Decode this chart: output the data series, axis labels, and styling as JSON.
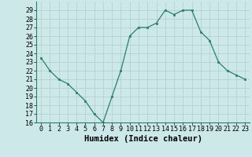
{
  "x": [
    0,
    1,
    2,
    3,
    4,
    5,
    6,
    7,
    8,
    9,
    10,
    11,
    12,
    13,
    14,
    15,
    16,
    17,
    18,
    19,
    20,
    21,
    22,
    23
  ],
  "y": [
    23.5,
    22,
    21,
    20.5,
    19.5,
    18.5,
    17,
    16,
    19,
    22,
    26,
    27,
    27,
    27.5,
    29,
    28.5,
    29,
    29,
    26.5,
    25.5,
    23,
    22,
    21.5,
    21
  ],
  "xlabel": "Humidex (Indice chaleur)",
  "xlim": [
    -0.5,
    23.5
  ],
  "ylim": [
    16,
    30
  ],
  "yticks": [
    16,
    17,
    18,
    19,
    20,
    21,
    22,
    23,
    24,
    25,
    26,
    27,
    28,
    29
  ],
  "xtick_labels": [
    "0",
    "1",
    "2",
    "3",
    "4",
    "5",
    "6",
    "7",
    "8",
    "9",
    "10",
    "11",
    "12",
    "13",
    "14",
    "15",
    "16",
    "17",
    "18",
    "19",
    "20",
    "21",
    "22",
    "23"
  ],
  "line_color": "#2d7d6d",
  "bg_color": "#cce8e8",
  "grid_color": "#b0cccc",
  "tick_fontsize": 6.0,
  "label_fontsize": 7.5
}
